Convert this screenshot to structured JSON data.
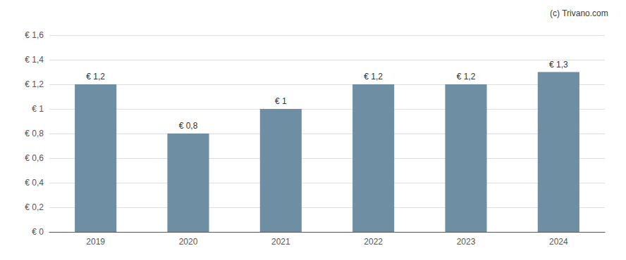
{
  "chart_data": {
    "type": "bar",
    "categories": [
      "2019",
      "2020",
      "2021",
      "2022",
      "2023",
      "2024"
    ],
    "values": [
      1.2,
      0.8,
      1.0,
      1.2,
      1.2,
      1.3
    ],
    "value_labels": [
      "€ 1,2",
      "€ 0,8",
      "€ 1",
      "€ 1,2",
      "€ 1,2",
      "€ 1,3"
    ],
    "data_labels": true,
    "color": "#6e8fa3",
    "ylim": [
      0,
      1.6
    ],
    "yticks": [
      {
        "value": 0,
        "label": "€ 0"
      },
      {
        "value": 0.2,
        "label": "€ 0,2"
      },
      {
        "value": 0.4,
        "label": "€ 0,4"
      },
      {
        "value": 0.6,
        "label": "€ 0,6"
      },
      {
        "value": 0.8,
        "label": "€ 0,8"
      },
      {
        "value": 1.0,
        "label": "€ 1"
      },
      {
        "value": 1.2,
        "label": "€ 1,2"
      },
      {
        "value": 1.4,
        "label": "€ 1,4"
      },
      {
        "value": 1.6,
        "label": "€ 1,6"
      }
    ],
    "grid": true,
    "annotations": [
      {
        "text": "(c) Trivano.com"
      }
    ]
  }
}
